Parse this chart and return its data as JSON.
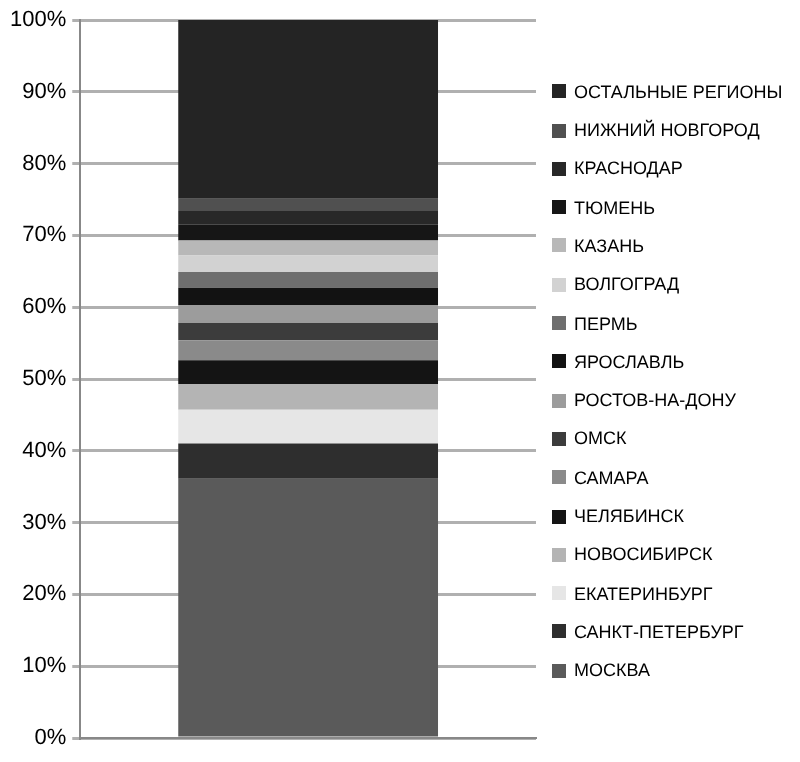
{
  "chart_data": {
    "type": "bar",
    "stacked": true,
    "categories": [
      null
    ],
    "series": [
      {
        "name": "МОСКВА",
        "color": "#5a5a5a",
        "values": [
          36.1
        ]
      },
      {
        "name": "САНКТ-ПЕТЕРБУРГ",
        "color": "#2e2e2e",
        "values": [
          4.9
        ]
      },
      {
        "name": "ЕКАТЕРИНБУРГ",
        "color": "#e6e6e6",
        "values": [
          4.7
        ]
      },
      {
        "name": "НОВОСИБИРСК",
        "color": "#b4b4b4",
        "values": [
          3.6
        ]
      },
      {
        "name": "ЧЕЛЯБИНСК",
        "color": "#141414",
        "values": [
          3.3
        ]
      },
      {
        "name": "САМАРА",
        "color": "#8a8a8a",
        "values": [
          2.8
        ]
      },
      {
        "name": "ОМСК",
        "color": "#3c3c3c",
        "values": [
          2.4
        ]
      },
      {
        "name": "РОСТОВ-НА-ДОНУ",
        "color": "#9c9c9c",
        "values": [
          2.5
        ]
      },
      {
        "name": "ЯРОСЛАВЛЬ",
        "color": "#121212",
        "values": [
          2.4
        ]
      },
      {
        "name": "ПЕРМЬ",
        "color": "#6e6e6e",
        "values": [
          2.2
        ]
      },
      {
        "name": "ВОЛГОГРАД",
        "color": "#d2d2d2",
        "values": [
          2.3
        ]
      },
      {
        "name": "КАЗАНЬ",
        "color": "#b8b8b8",
        "values": [
          2.1
        ]
      },
      {
        "name": "ТЮМЕНЬ",
        "color": "#161616",
        "values": [
          2.2
        ]
      },
      {
        "name": "КРАСНОДАР",
        "color": "#282828",
        "values": [
          1.9
        ]
      },
      {
        "name": "НИЖНИЙ НОВГОРОД",
        "color": "#505050",
        "values": [
          1.7
        ]
      },
      {
        "name": "ОСТАЛЬНЫЕ РЕГИОНЫ",
        "color": "#242424",
        "values": [
          24.9
        ]
      }
    ],
    "ylim": [
      0,
      100
    ],
    "yticks": [
      {
        "value": 0,
        "label": "0%"
      },
      {
        "value": 10,
        "label": "10%"
      },
      {
        "value": 20,
        "label": "20%"
      },
      {
        "value": 30,
        "label": "30%"
      },
      {
        "value": 40,
        "label": "40%"
      },
      {
        "value": 50,
        "label": "50%"
      },
      {
        "value": 60,
        "label": "60%"
      },
      {
        "value": 70,
        "label": "70%"
      },
      {
        "value": 80,
        "label": "80%"
      },
      {
        "value": 90,
        "label": "90%"
      },
      {
        "value": 100,
        "label": "100%"
      }
    ],
    "grid": "y",
    "legend": "right",
    "tick_labels": "y"
  }
}
